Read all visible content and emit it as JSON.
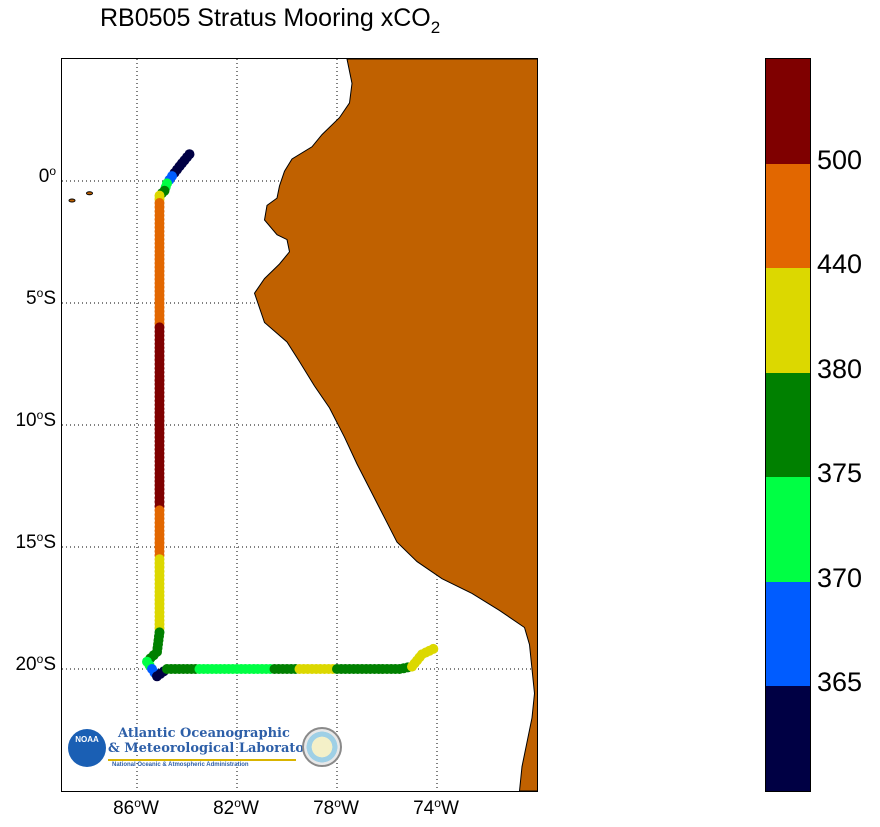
{
  "title": {
    "main": "RB0505 Stratus Mooring xCO",
    "subscript": "2"
  },
  "map": {
    "lon_range": [
      -89,
      -70
    ],
    "lat_range": [
      -25,
      5
    ],
    "land_color": "#c06100",
    "graticule": "dotted",
    "y_ticks": [
      {
        "lat": 0,
        "label": "0",
        "hemi": ""
      },
      {
        "lat": -5,
        "label": "5",
        "hemi": "S"
      },
      {
        "lat": -10,
        "label": "10",
        "hemi": "S"
      },
      {
        "lat": -15,
        "label": "15",
        "hemi": "S"
      },
      {
        "lat": -20,
        "label": "20",
        "hemi": "S"
      }
    ],
    "x_ticks": [
      {
        "lon": -86,
        "label": "86",
        "hemi": "W"
      },
      {
        "lon": -82,
        "label": "82",
        "hemi": "W"
      },
      {
        "lon": -78,
        "label": "78",
        "hemi": "W"
      },
      {
        "lon": -74,
        "label": "74",
        "hemi": "W"
      }
    ],
    "degree_symbol": "o"
  },
  "track": [
    {
      "lon": -83.9,
      "lat": 1.1,
      "xco2": 360
    },
    {
      "lon": -84.3,
      "lat": 0.6,
      "xco2": 362
    },
    {
      "lon": -84.6,
      "lat": 0.2,
      "xco2": 367
    },
    {
      "lon": -84.8,
      "lat": -0.1,
      "xco2": 372
    },
    {
      "lon": -84.9,
      "lat": -0.4,
      "xco2": 378
    },
    {
      "lon": -85.1,
      "lat": -0.6,
      "xco2": 400
    },
    {
      "lon": -85.1,
      "lat": -0.9,
      "xco2": 460
    },
    {
      "lon": -85.1,
      "lat": -1.4,
      "xco2": 470
    },
    {
      "lon": -85.1,
      "lat": -6.0,
      "xco2": 520
    },
    {
      "lon": -85.1,
      "lat": -8.0,
      "xco2": 525
    },
    {
      "lon": -85.1,
      "lat": -10.0,
      "xco2": 530
    },
    {
      "lon": -85.1,
      "lat": -12.8,
      "xco2": 520
    },
    {
      "lon": -85.1,
      "lat": -13.5,
      "xco2": 470
    },
    {
      "lon": -85.1,
      "lat": -15.0,
      "xco2": 460
    },
    {
      "lon": -85.1,
      "lat": -15.5,
      "xco2": 400
    },
    {
      "lon": -85.1,
      "lat": -18.0,
      "xco2": 390
    },
    {
      "lon": -85.1,
      "lat": -18.5,
      "xco2": 378
    },
    {
      "lon": -85.2,
      "lat": -19.3,
      "xco2": 377
    },
    {
      "lon": -85.6,
      "lat": -19.7,
      "xco2": 372
    },
    {
      "lon": -85.4,
      "lat": -20.0,
      "xco2": 366
    },
    {
      "lon": -85.2,
      "lat": -20.3,
      "xco2": 362
    },
    {
      "lon": -84.8,
      "lat": -20.0,
      "xco2": 377
    },
    {
      "lon": -83.5,
      "lat": -20.0,
      "xco2": 372
    },
    {
      "lon": -82.0,
      "lat": -20.0,
      "xco2": 373
    },
    {
      "lon": -80.5,
      "lat": -20.0,
      "xco2": 377
    },
    {
      "lon": -79.5,
      "lat": -20.0,
      "xco2": 385
    },
    {
      "lon": -78.0,
      "lat": -20.0,
      "xco2": 378
    },
    {
      "lon": -76.5,
      "lat": -20.0,
      "xco2": 376
    },
    {
      "lon": -75.5,
      "lat": -20.0,
      "xco2": 377
    },
    {
      "lon": -75.0,
      "lat": -19.9,
      "xco2": 390
    },
    {
      "lon": -74.6,
      "lat": -19.4,
      "xco2": 395
    },
    {
      "lon": -74.0,
      "lat": -19.1,
      "xco2": 400
    }
  ],
  "colorbar": {
    "segments": [
      {
        "color": "#7f0000",
        "range": "500+"
      },
      {
        "color": "#e26700",
        "range": "440-500"
      },
      {
        "color": "#dcd800",
        "range": "380-440"
      },
      {
        "color": "#008000",
        "range": "375-380"
      },
      {
        "color": "#00ff44",
        "range": "370-375"
      },
      {
        "color": "#005cff",
        "range": "365-370"
      },
      {
        "color": "#000044",
        "range": "<365"
      }
    ],
    "labels": [
      "500",
      "440",
      "380",
      "375",
      "370",
      "365"
    ]
  },
  "logo": {
    "badge": "NOAA",
    "line1": "Atlantic Oceanographic",
    "line2": "& Meteorological Laboratory",
    "line3": "National Oceanic & Atmospheric Administration"
  }
}
